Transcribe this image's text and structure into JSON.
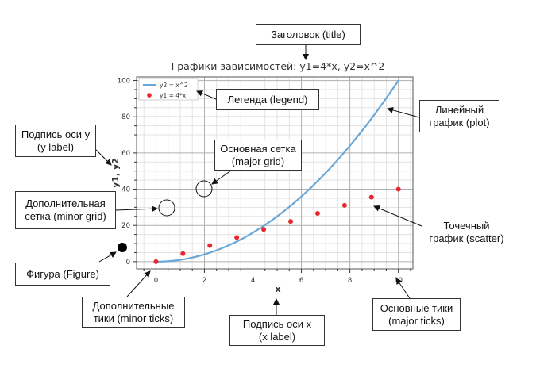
{
  "chart_data": {
    "type": "line",
    "title": "Графики зависимостей: y1=4*x, y2=x^2",
    "xlabel": "x",
    "ylabel": "y1, y2",
    "xlim": [
      -0.8,
      10.6
    ],
    "ylim": [
      -4,
      102
    ],
    "x_ticks": [
      0,
      2,
      4,
      6,
      8,
      10
    ],
    "y_ticks": [
      0,
      20,
      40,
      60,
      80,
      100
    ],
    "grid": true,
    "minor_grid": true,
    "legend_position": "top-left",
    "series": [
      {
        "name": "y2 = x^2",
        "kind": "line",
        "color": "#6aa6d6",
        "x": [
          0,
          1.111,
          2.222,
          3.333,
          4.444,
          5.556,
          6.667,
          7.778,
          8.889,
          10
        ],
        "values": [
          0,
          1.23,
          4.94,
          11.11,
          19.75,
          30.86,
          44.44,
          60.49,
          79.01,
          100
        ]
      },
      {
        "name": "y1 = 4*x",
        "kind": "scatter",
        "color": "#e8262b",
        "x": [
          0,
          1.111,
          2.222,
          3.333,
          4.444,
          5.556,
          6.667,
          7.778,
          8.889,
          10
        ],
        "values": [
          0,
          4.44,
          8.89,
          13.33,
          17.78,
          22.22,
          26.67,
          31.11,
          35.56,
          40
        ]
      }
    ]
  },
  "annotations": {
    "title": "Заголовок (title)",
    "legend": "Легенда (legend)",
    "plot": "Линейный\nграфик (plot)",
    "ylabel": "Подпись оси y\n(y label)",
    "major_grid": "Основная сетка\n(major grid)",
    "minor_grid": "Дополнительная\nсетка (minor grid)",
    "scatter": "Точечный\nграфик (scatter)",
    "figure": "Фигура (Figure)",
    "minor_ticks": "Дополнительные\nтики (minor ticks)",
    "xlabel": "Подпись оси x\n(x label)",
    "major_ticks": "Основные тики\n(major ticks)"
  }
}
